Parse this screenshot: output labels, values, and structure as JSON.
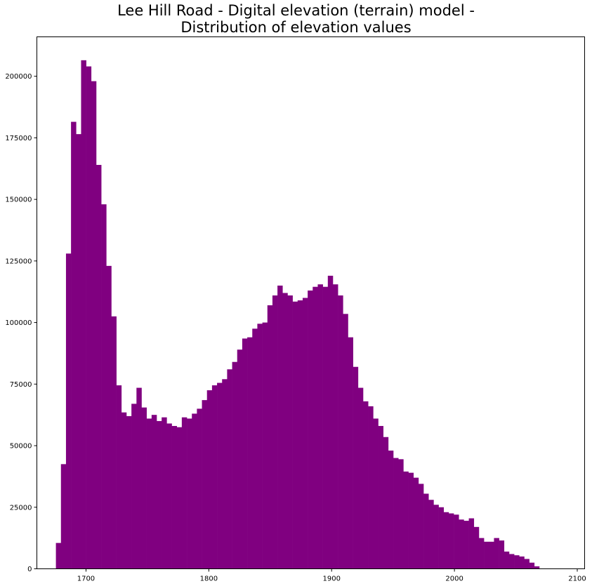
{
  "chart_data": {
    "type": "bar",
    "title_lines": [
      "Lee Hill Road - Digital elevation (terrain) model -",
      "Distribution of elevation values"
    ],
    "xlabel": "",
    "ylabel": "",
    "xlim": [
      1660,
      2106
    ],
    "ylim": [
      0,
      216000
    ],
    "x_ticks": [
      1700,
      1800,
      1900,
      2000,
      2100
    ],
    "y_ticks": [
      0,
      25000,
      50000,
      75000,
      100000,
      125000,
      150000,
      175000,
      200000
    ],
    "grid": false,
    "bin_start": 1675.5,
    "bin_width": 4.1,
    "color": "#800080",
    "values": [
      10500,
      42500,
      128000,
      181500,
      176500,
      206500,
      204000,
      198000,
      164000,
      148000,
      123000,
      102500,
      74500,
      63500,
      62000,
      67000,
      73500,
      65500,
      61000,
      62500,
      60000,
      61500,
      59000,
      58000,
      57500,
      61500,
      61000,
      63000,
      65000,
      68500,
      72500,
      74500,
      75500,
      77000,
      81000,
      84000,
      89000,
      93500,
      94000,
      97500,
      99500,
      100000,
      107000,
      111000,
      115000,
      112000,
      111000,
      108500,
      109000,
      110000,
      113000,
      114500,
      115500,
      114500,
      119000,
      115500,
      111000,
      103500,
      94000,
      82000,
      73500,
      68000,
      66000,
      61000,
      58000,
      53500,
      48000,
      45000,
      44500,
      39500,
      39000,
      37000,
      34500,
      30500,
      28000,
      26000,
      25000,
      23000,
      22500,
      22000,
      20000,
      19500,
      20500,
      17000,
      12500,
      11000,
      11000,
      12500,
      11500,
      7000,
      6000,
      5500,
      5000,
      4000,
      2500,
      1000
    ]
  }
}
